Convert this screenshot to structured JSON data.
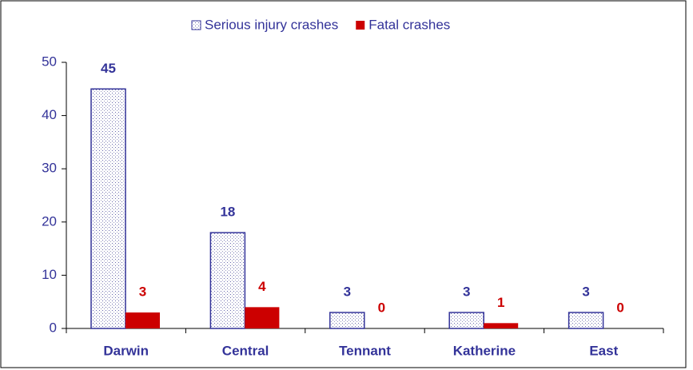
{
  "chart_data": {
    "type": "bar",
    "categories": [
      "Darwin",
      "Central",
      "Tennant",
      "Katherine",
      "East"
    ],
    "series": [
      {
        "name": "Serious injury crashes",
        "color": "#333399",
        "values": [
          45,
          18,
          3,
          3,
          3
        ]
      },
      {
        "name": "Fatal crashes",
        "color": "#cc0000",
        "values": [
          3,
          4,
          0,
          1,
          0
        ]
      }
    ],
    "ylim": [
      0,
      50
    ],
    "yticks": [
      0,
      10,
      20,
      30,
      40,
      50
    ],
    "legend": "top"
  }
}
